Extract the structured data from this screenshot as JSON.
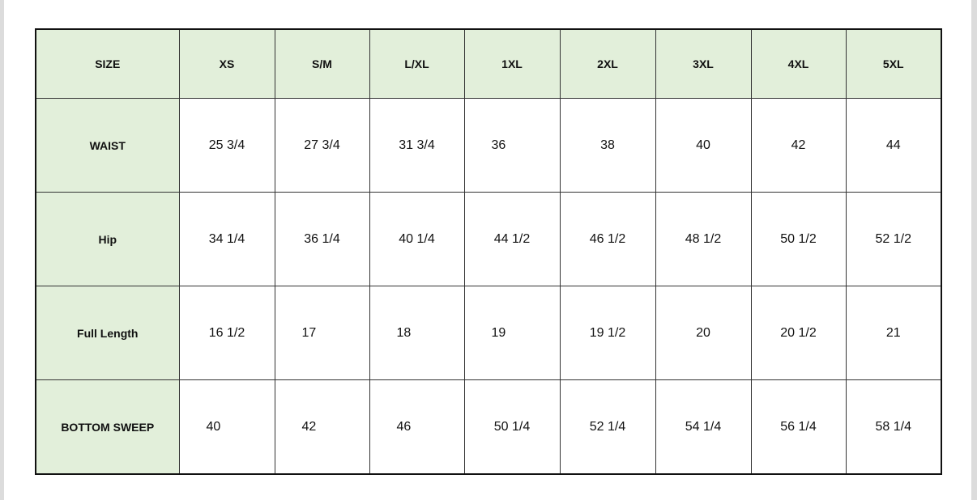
{
  "table": {
    "headers": [
      "SIZE",
      "XS",
      "S/M",
      "L/XL",
      "1XL",
      "2XL",
      "3XL",
      "4XL",
      "5XL"
    ],
    "rows": [
      {
        "label": "WAIST",
        "values": [
          "25 3/4",
          "27 3/4",
          "31 3/4",
          "36",
          "38",
          "40",
          "42",
          "44"
        ]
      },
      {
        "label": "Hip",
        "values": [
          "34 1/4",
          "36 1/4",
          "40 1/4",
          "44 1/2",
          "46 1/2",
          "48 1/2",
          "50 1/2",
          "52 1/2"
        ]
      },
      {
        "label": "Full Length",
        "values": [
          "16 1/2",
          "17",
          "18",
          "19",
          "19 1/2",
          "20",
          "20 1/2",
          "21"
        ]
      },
      {
        "label": "BOTTOM SWEEP",
        "values": [
          "40",
          "42",
          "46",
          "50 1/4",
          "52 1/4",
          "54 1/4",
          "56 1/4",
          "58 1/4"
        ]
      }
    ]
  },
  "colors": {
    "header_fill": "#e2efda",
    "border": "#111111"
  }
}
